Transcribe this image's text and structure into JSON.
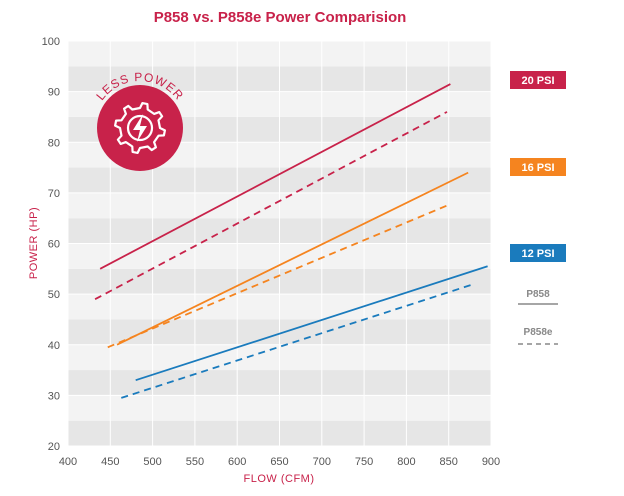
{
  "colors": {
    "accent": "#c8224a",
    "psi20": "#c8224a",
    "psi16": "#f5841f",
    "psi12": "#1a7bbd",
    "band_dark": "#e6e6e6",
    "band_light": "#f3f3f3",
    "legend_gray": "#888888"
  },
  "badge": {
    "text": "LESS POWER",
    "icon": "gear-lightning-icon"
  },
  "chart_data": {
    "type": "line",
    "title": "P858 vs. P858e Power Comparision",
    "xlabel": "FLOW (CFM)",
    "ylabel": "POWER (HP)",
    "xlim": [
      400,
      900
    ],
    "ylim": [
      20,
      100
    ],
    "xticks": [
      400,
      450,
      500,
      550,
      600,
      650,
      700,
      750,
      800,
      850,
      900
    ],
    "yticks": [
      20,
      30,
      40,
      50,
      60,
      70,
      80,
      90,
      100
    ],
    "grid": true,
    "legend": {
      "placement": "right",
      "groups": [
        {
          "label": "20 PSI",
          "color": "#c8224a"
        },
        {
          "label": "16 PSI",
          "color": "#f5841f"
        },
        {
          "label": "12 PSI",
          "color": "#1a7bbd"
        }
      ],
      "styles": [
        {
          "label": "P858",
          "dash": "solid"
        },
        {
          "label": "P858e",
          "dash": "dashed"
        }
      ]
    },
    "series": [
      {
        "group": "20 PSI",
        "model": "P858",
        "color": "#c8224a",
        "dash": "solid",
        "x": [
          438,
          852
        ],
        "y": [
          55,
          91.5
        ]
      },
      {
        "group": "20 PSI",
        "model": "P858e",
        "color": "#c8224a",
        "dash": "dashed",
        "x": [
          432,
          848
        ],
        "y": [
          49,
          86
        ]
      },
      {
        "group": "16 PSI",
        "model": "P858",
        "color": "#f5841f",
        "dash": "solid",
        "x": [
          458,
          873
        ],
        "y": [
          40,
          74
        ]
      },
      {
        "group": "16 PSI",
        "model": "P858e",
        "color": "#f5841f",
        "dash": "dashed",
        "x": [
          447,
          848
        ],
        "y": [
          39.5,
          67.5
        ]
      },
      {
        "group": "12 PSI",
        "model": "P858",
        "color": "#1a7bbd",
        "dash": "solid",
        "x": [
          480,
          896
        ],
        "y": [
          33,
          55.5
        ]
      },
      {
        "group": "12 PSI",
        "model": "P858e",
        "color": "#1a7bbd",
        "dash": "dashed",
        "x": [
          463,
          880
        ],
        "y": [
          29.5,
          52
        ]
      }
    ]
  }
}
